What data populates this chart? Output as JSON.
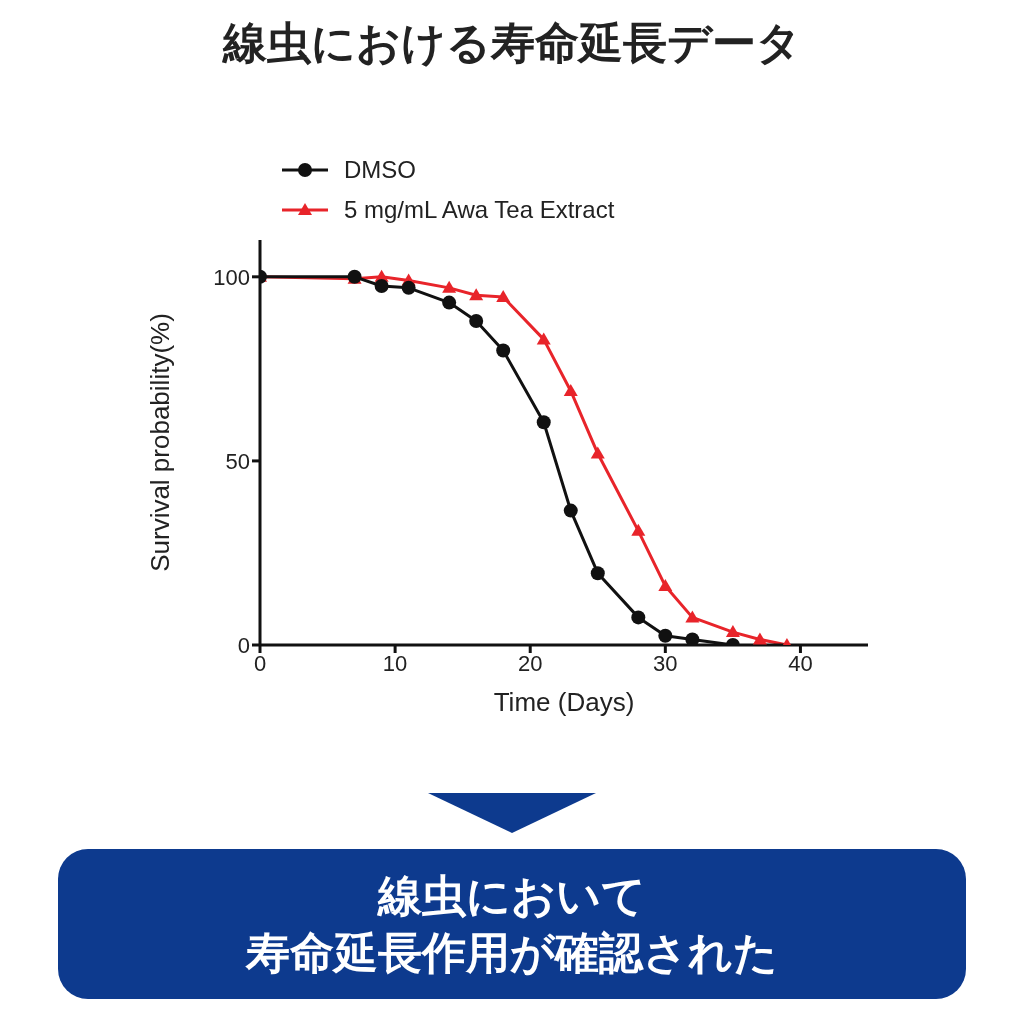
{
  "chart_data": {
    "type": "line",
    "title": "線虫における寿命延長データ",
    "xlabel": "Time (Days)",
    "ylabel": "Survival probability(%)",
    "xlim": [
      0,
      45
    ],
    "xticks": [
      0,
      10,
      20,
      30,
      40
    ],
    "ylim": [
      0,
      110
    ],
    "yticks": [
      0,
      50,
      100
    ],
    "legend": "top left",
    "series": [
      {
        "name": "DMSO",
        "color": "#111111",
        "marker": "circle",
        "x": [
          0,
          7,
          9,
          11,
          14,
          16,
          18,
          21,
          23,
          25,
          28,
          30,
          32,
          35
        ],
        "values": [
          100,
          100,
          97.5,
          97,
          93,
          88,
          80,
          60.5,
          36.5,
          19.5,
          7.5,
          2.5,
          1.5,
          0
        ]
      },
      {
        "name": "5 mg/mL Awa Tea Extract",
        "color": "#e8242a",
        "marker": "triangle",
        "x": [
          0,
          7,
          9,
          11,
          14,
          16,
          18,
          21,
          23,
          25,
          28,
          30,
          32,
          35,
          37,
          39
        ],
        "values": [
          100,
          99.5,
          100,
          99,
          97,
          95,
          94.5,
          83,
          69,
          52,
          31,
          16,
          7.5,
          3.5,
          1.5,
          0
        ]
      }
    ],
    "annotations": [
      "線虫において",
      "寿命延長作用が確認された"
    ]
  }
}
